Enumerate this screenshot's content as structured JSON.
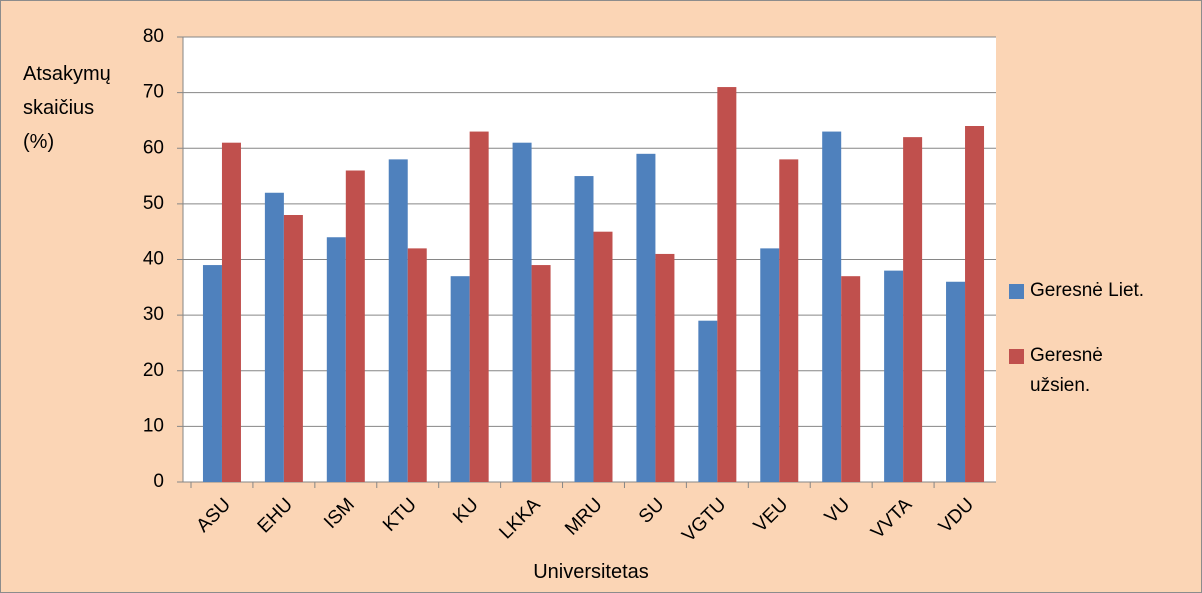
{
  "chart_data": {
    "type": "bar",
    "y_label": "Atsakymų skaičius (%)",
    "x_label": "Universitetas",
    "categories": [
      "ASU",
      "EHU",
      "ISM",
      "KTU",
      "KU",
      "LKKA",
      "MRU",
      "SU",
      "VGTU",
      "VEU",
      "VU",
      "VVTA",
      "VDU"
    ],
    "series": [
      {
        "name": "Geresnė Liet.",
        "color": "#4f81bd",
        "values": [
          39,
          52,
          44,
          58,
          37,
          61,
          55,
          59,
          29,
          42,
          63,
          38,
          36
        ]
      },
      {
        "name": "Geresnė užsien.",
        "color": "#c0504d",
        "values": [
          61,
          48,
          56,
          42,
          63,
          39,
          45,
          41,
          71,
          58,
          37,
          62,
          64
        ]
      }
    ],
    "ylim": [
      0,
      80
    ],
    "yticks": [
      0,
      10,
      20,
      30,
      40,
      50,
      60,
      70,
      80
    ],
    "grid": true,
    "legend": "right"
  }
}
